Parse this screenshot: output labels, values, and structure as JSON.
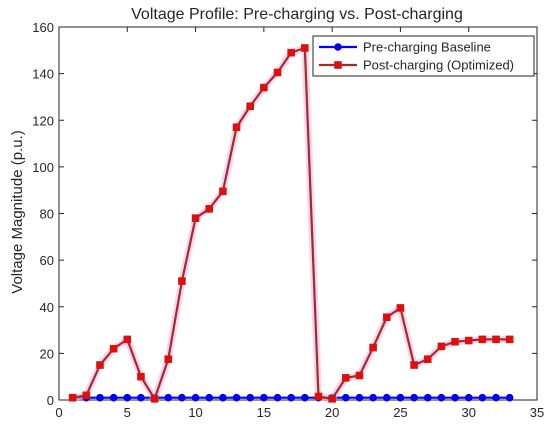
{
  "chart_data": {
    "type": "line",
    "title": "Voltage Profile: Pre-charging vs. Post-charging",
    "xlabel": "",
    "ylabel": "Voltage Magnitude (p.u.)",
    "xlim": [
      0,
      35
    ],
    "ylim": [
      0,
      160
    ],
    "xticks": [
      0,
      5,
      10,
      15,
      20,
      25,
      30,
      35
    ],
    "yticks": [
      0,
      20,
      40,
      60,
      80,
      100,
      120,
      140,
      160
    ],
    "grid": false,
    "legend_position": "top-right",
    "x": [
      1,
      2,
      3,
      4,
      5,
      6,
      7,
      8,
      9,
      10,
      11,
      12,
      13,
      14,
      15,
      16,
      17,
      18,
      19,
      20,
      21,
      22,
      23,
      24,
      25,
      26,
      27,
      28,
      29,
      30,
      31,
      32,
      33
    ],
    "series": [
      {
        "name": "Pre-charging Baseline",
        "color": "#0000ff",
        "marker": "circle",
        "values": [
          1,
          1,
          1,
          1,
          1,
          1,
          1,
          1,
          1,
          1,
          1,
          1,
          1,
          1,
          1,
          1,
          1,
          1,
          1,
          1,
          1,
          1,
          1,
          1,
          1,
          1,
          1,
          1,
          1,
          1,
          1,
          1,
          1
        ]
      },
      {
        "name": "Post-charging (Optimized)",
        "color": "#a52a2a",
        "marker_color": "#ff0000",
        "marker": "square",
        "values": [
          1,
          2,
          15,
          22,
          26,
          10,
          0.5,
          17.5,
          51,
          78,
          82,
          89.5,
          117,
          126,
          134,
          140.5,
          149,
          151,
          1.5,
          0.5,
          9.5,
          10.5,
          22.5,
          35.5,
          39.5,
          15,
          17.5,
          23,
          25,
          25.5,
          26,
          26,
          26
        ]
      }
    ]
  }
}
